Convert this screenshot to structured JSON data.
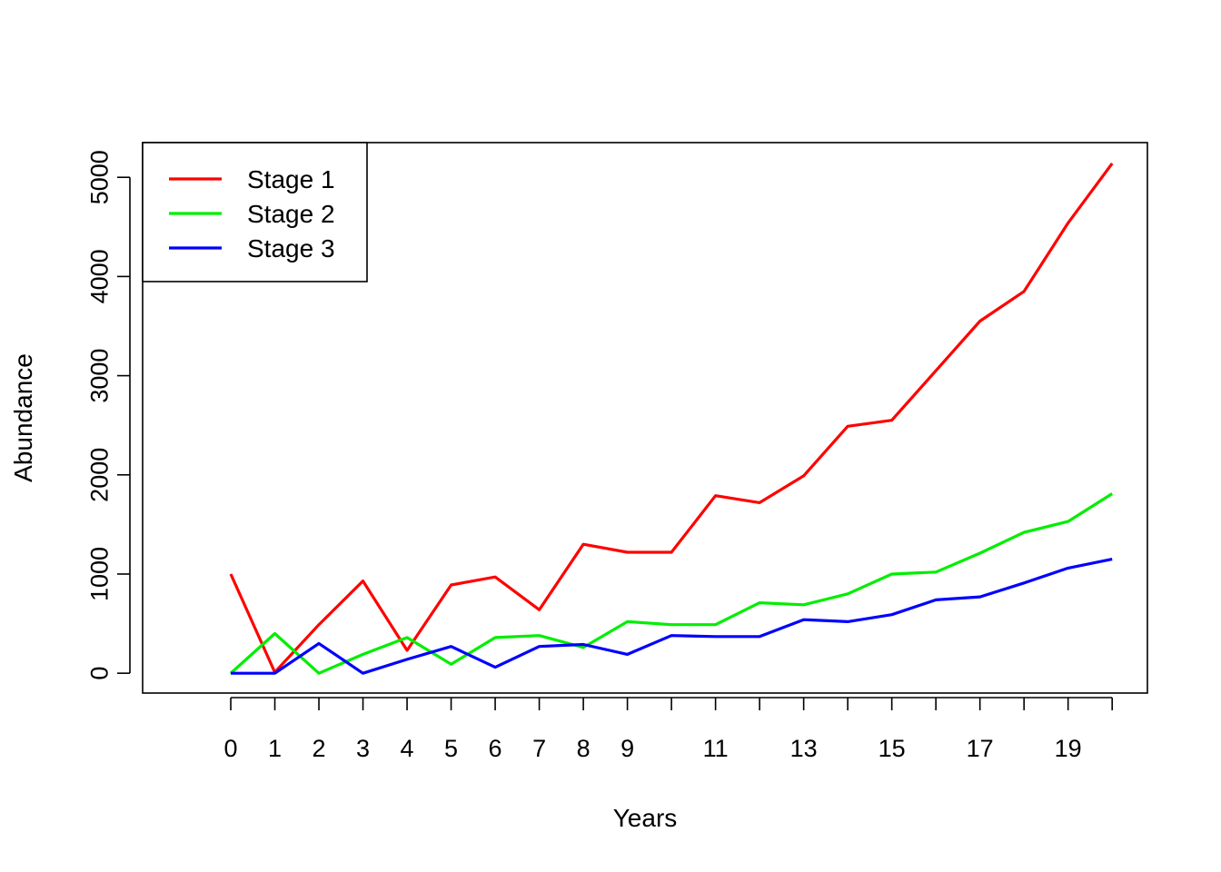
{
  "chart_data": {
    "type": "line",
    "xlabel": "Years",
    "ylabel": "Abundance",
    "x": [
      0,
      1,
      2,
      3,
      4,
      5,
      6,
      7,
      8,
      9,
      10,
      11,
      12,
      13,
      14,
      15,
      16,
      17,
      18,
      19,
      20
    ],
    "x_tick_labels": [
      "0",
      "1",
      "2",
      "3",
      "4",
      "5",
      "6",
      "7",
      "8",
      "9",
      "",
      "11",
      "",
      "13",
      "",
      "15",
      "",
      "17",
      "",
      "19",
      ""
    ],
    "y_ticks": [
      0,
      1000,
      2000,
      3000,
      4000,
      5000
    ],
    "y_tick_labels": [
      "0",
      "1000",
      "2000",
      "3000",
      "4000",
      "5000"
    ],
    "xlim": [
      -2,
      20.8
    ],
    "ylim": [
      -200,
      5350
    ],
    "grid": false,
    "legend": {
      "position": "top-left",
      "entries": [
        {
          "label": "Stage  1",
          "color": "#ff0000"
        },
        {
          "label": "Stage  2",
          "color": "#00ee00"
        },
        {
          "label": "Stage  3",
          "color": "#0000ff"
        }
      ]
    },
    "series": [
      {
        "name": "Stage  1",
        "color": "#ff0000",
        "values": [
          1000,
          10,
          490,
          930,
          230,
          890,
          970,
          640,
          1300,
          1220,
          1220,
          1790,
          1720,
          1990,
          2490,
          2550,
          3050,
          3550,
          3850,
          4540,
          5140
        ]
      },
      {
        "name": "Stage  2",
        "color": "#00ee00",
        "values": [
          0,
          400,
          0,
          190,
          360,
          90,
          360,
          380,
          260,
          520,
          490,
          490,
          710,
          690,
          800,
          1000,
          1020,
          1210,
          1420,
          1530,
          1810
        ]
      },
      {
        "name": "Stage  3",
        "color": "#0000ff",
        "values": [
          0,
          0,
          300,
          0,
          140,
          270,
          60,
          270,
          290,
          190,
          380,
          370,
          370,
          540,
          520,
          590,
          740,
          770,
          910,
          1060,
          1150
        ]
      }
    ]
  }
}
